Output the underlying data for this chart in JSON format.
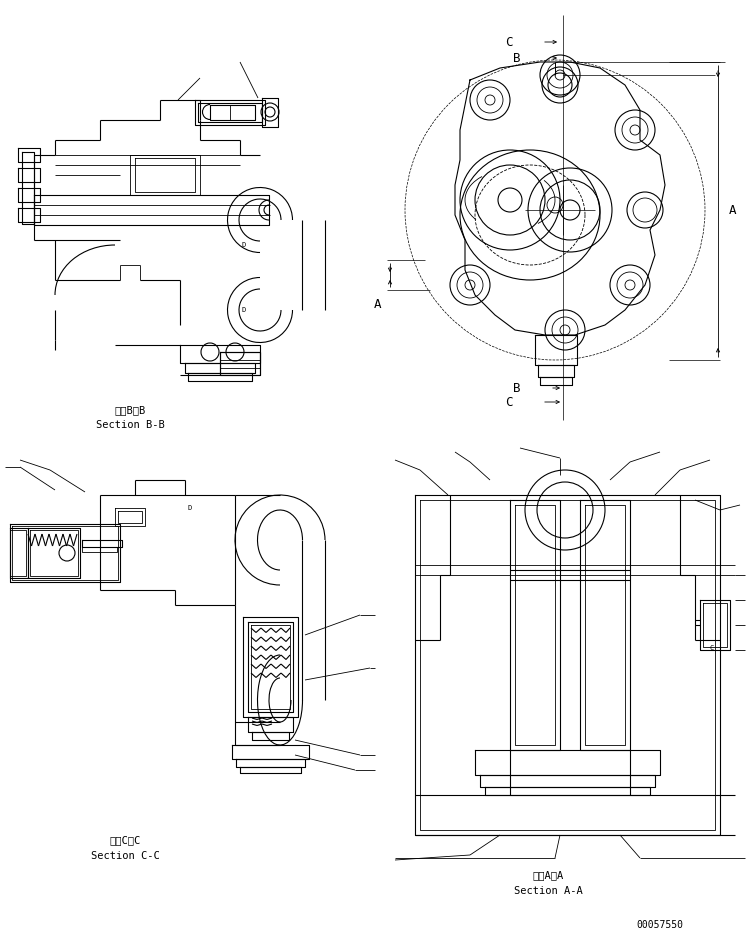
{
  "bg_color": "#ffffff",
  "line_color": "#000000",
  "fig_width": 7.46,
  "fig_height": 9.43,
  "dpi": 100,
  "labels": {
    "bb_japanese": "断面B－B",
    "bb_english": "Section B-B",
    "cc_japanese": "断面C－C",
    "cc_english": "Section C-C",
    "aa_japanese": "断面A－A",
    "aa_english": "Section A-A",
    "part_number": "00057550",
    "dim_A": "A",
    "dim_B": "B",
    "dim_C": "C"
  },
  "font_size_label": 7.5,
  "font_size_partno": 7,
  "font_size_dim": 9
}
